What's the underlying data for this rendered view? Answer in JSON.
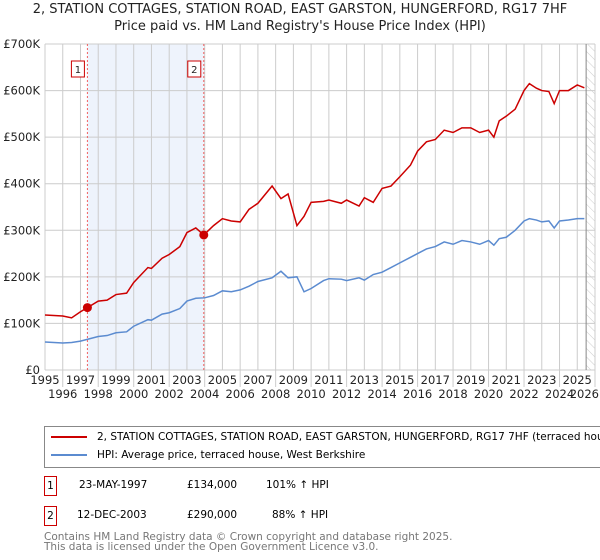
{
  "chart_data": {
    "type": "line",
    "title": "2, STATION COTTAGES, STATION ROAD, EAST GARSTON, HUNGERFORD, RG17 7HF",
    "subtitle": "Price paid vs. HM Land Registry's House Price Index (HPI)",
    "xlim": [
      1995,
      2026
    ],
    "ylim": [
      0,
      700000
    ],
    "x_ticks": [
      "1995",
      "1996",
      "1997",
      "1998",
      "1999",
      "2000",
      "2001",
      "2002",
      "2003",
      "2004",
      "2005",
      "2006",
      "2007",
      "2008",
      "2009",
      "2010",
      "2011",
      "2012",
      "2013",
      "2014",
      "2015",
      "2016",
      "2017",
      "2018",
      "2019",
      "2020",
      "2021",
      "2022",
      "2023",
      "2024",
      "2025",
      "2026"
    ],
    "y_ticks": [
      {
        "v": 0,
        "label": "£0"
      },
      {
        "v": 100000,
        "label": "£100K"
      },
      {
        "v": 200000,
        "label": "£200K"
      },
      {
        "v": 300000,
        "label": "£300K"
      },
      {
        "v": 400000,
        "label": "£400K"
      },
      {
        "v": 500000,
        "label": "£500K"
      },
      {
        "v": 600000,
        "label": "£600K"
      },
      {
        "v": 700000,
        "label": "£700K"
      }
    ],
    "grid": true,
    "series": [
      {
        "name": "2, STATION COTTAGES, STATION ROAD, EAST GARSTON, HUNGERFORD, RG17 7HF (terraced house)",
        "color": "#cc0000",
        "x": [
          1995,
          1996,
          1996.5,
          1997,
          1997.39,
          1998,
          1998.5,
          1999,
          1999.6,
          2000,
          2000.8,
          2001,
          2001.6,
          2002,
          2002.6,
          2003,
          2003.5,
          2003.95,
          2004.5,
          2005,
          2005.5,
          2006,
          2006.5,
          2007,
          2007.8,
          2008.3,
          2008.7,
          2009.2,
          2009.6,
          2010,
          2010.7,
          2011,
          2011.7,
          2012,
          2012.7,
          2013,
          2013.5,
          2014,
          2014.5,
          2015,
          2015.6,
          2016,
          2016.5,
          2017,
          2017.5,
          2018,
          2018.5,
          2019,
          2019.5,
          2020,
          2020.3,
          2020.6,
          2021,
          2021.5,
          2022,
          2022.3,
          2022.7,
          2023,
          2023.4,
          2023.7,
          2024,
          2024.5,
          2025,
          2025.4
        ],
        "values": [
          118000,
          116000,
          112000,
          125000,
          134000,
          148000,
          150000,
          162000,
          165000,
          188000,
          220000,
          218000,
          240000,
          248000,
          265000,
          295000,
          305000,
          290000,
          310000,
          325000,
          320000,
          318000,
          345000,
          358000,
          395000,
          368000,
          378000,
          310000,
          330000,
          360000,
          362000,
          365000,
          358000,
          365000,
          352000,
          370000,
          360000,
          390000,
          395000,
          415000,
          440000,
          470000,
          490000,
          495000,
          515000,
          510000,
          520000,
          520000,
          510000,
          515000,
          500000,
          535000,
          545000,
          560000,
          600000,
          615000,
          605000,
          600000,
          598000,
          572000,
          600000,
          600000,
          612000,
          606000
        ]
      },
      {
        "name": "HPI: Average price, terraced house, West Berkshire",
        "color": "#5b8bd0",
        "x": [
          1995,
          1996,
          1996.5,
          1997,
          1998,
          1998.5,
          1999,
          1999.6,
          2000,
          2000.8,
          2001,
          2001.6,
          2002,
          2002.6,
          2003,
          2003.5,
          2004,
          2004.5,
          2005,
          2005.5,
          2006,
          2006.5,
          2007,
          2007.8,
          2008.3,
          2008.7,
          2009.2,
          2009.6,
          2010,
          2010.7,
          2011,
          2011.7,
          2012,
          2012.7,
          2013,
          2013.5,
          2014,
          2014.5,
          2015,
          2015.6,
          2016,
          2016.5,
          2017,
          2017.5,
          2018,
          2018.5,
          2019,
          2019.5,
          2020,
          2020.3,
          2020.6,
          2021,
          2021.5,
          2022,
          2022.3,
          2022.7,
          2023,
          2023.4,
          2023.7,
          2024,
          2024.5,
          2025,
          2025.4
        ],
        "values": [
          60000,
          58000,
          59000,
          62000,
          72000,
          74000,
          80000,
          82000,
          94000,
          108000,
          107000,
          120000,
          123000,
          132000,
          148000,
          154000,
          155000,
          160000,
          170000,
          168000,
          172000,
          180000,
          190000,
          198000,
          212000,
          198000,
          200000,
          168000,
          175000,
          192000,
          196000,
          195000,
          192000,
          198000,
          193000,
          205000,
          210000,
          220000,
          230000,
          242000,
          250000,
          260000,
          265000,
          275000,
          270000,
          278000,
          275000,
          270000,
          278000,
          268000,
          282000,
          285000,
          300000,
          320000,
          325000,
          322000,
          318000,
          320000,
          305000,
          320000,
          322000,
          325000,
          325000
        ]
      }
    ],
    "sales": [
      {
        "label": "1",
        "x": 1997.39,
        "value": 134000,
        "date": "23-MAY-1997",
        "price": "£134,000",
        "hpi": "101% ↑ HPI"
      },
      {
        "label": "2",
        "x": 2003.95,
        "value": 290000,
        "date": "12-DEC-2003",
        "price": "£290,000",
        "hpi": "88% ↑ HPI"
      }
    ],
    "forecast_from": 2025.5
  },
  "legend": {
    "series1": "2, STATION COTTAGES, STATION ROAD, EAST GARSTON, HUNGERFORD, RG17 7HF (terraced house)",
    "series2": "HPI: Average price, terraced house, West Berkshire"
  },
  "footer": {
    "line1": "Contains HM Land Registry data © Crown copyright and database right 2025.",
    "line2": "This data is licensed under the Open Government Licence v3.0."
  }
}
